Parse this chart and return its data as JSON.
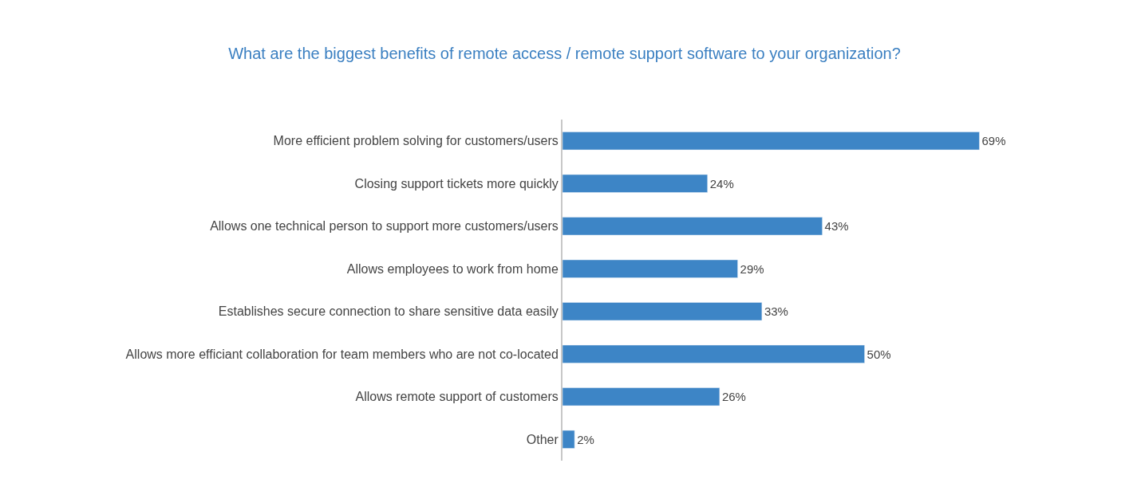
{
  "chart_data": {
    "type": "bar",
    "orientation": "horizontal",
    "title": "What are the biggest benefits of remote access / remote support software to your organization?",
    "categories": [
      "More efficient problem solving for customers/users",
      "Closing support tickets more quickly",
      "Allows one technical person to support more customers/users",
      "Allows employees to work from home",
      "Establishes secure connection to share sensitive data easily",
      "Allows more efficiant collaboration for team members who are not co-located",
      "Allows remote support of customers",
      "Other"
    ],
    "values": [
      69,
      24,
      43,
      29,
      33,
      50,
      26,
      2
    ],
    "value_labels": [
      "69%",
      "24%",
      "43%",
      "29%",
      "33%",
      "50%",
      "26%",
      "2%"
    ],
    "color": "#3d85c6"
  }
}
